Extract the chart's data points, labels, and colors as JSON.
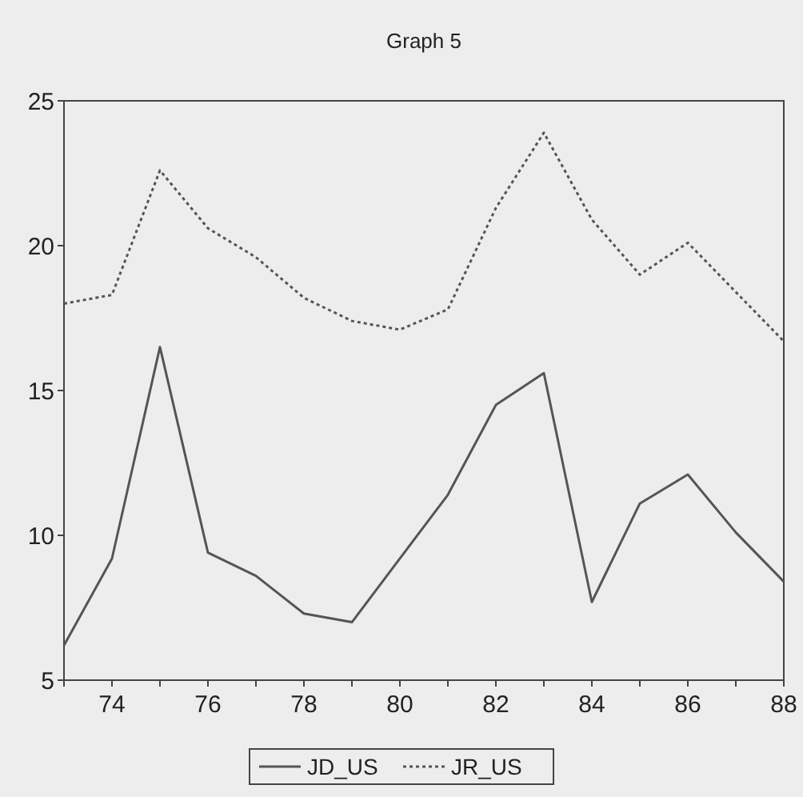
{
  "chart_data": {
    "type": "line",
    "title": "Graph 5",
    "x": [
      73,
      74,
      75,
      76,
      77,
      78,
      79,
      80,
      81,
      82,
      83,
      84,
      85,
      86,
      87,
      88
    ],
    "series": [
      {
        "name": "JD_US",
        "color": "#555555",
        "line_style": "solid",
        "values": [
          6.2,
          9.2,
          16.5,
          9.4,
          8.6,
          7.3,
          7.0,
          9.2,
          11.4,
          14.5,
          15.6,
          7.7,
          11.1,
          12.1,
          10.1,
          8.4
        ]
      },
      {
        "name": "JR_US",
        "color": "#555555",
        "line_style": "dotted",
        "values": [
          18.0,
          18.3,
          22.6,
          20.6,
          19.6,
          18.2,
          17.4,
          17.1,
          17.8,
          21.3,
          23.9,
          20.9,
          19.0,
          20.1,
          18.4,
          16.7
        ]
      }
    ],
    "xlim": [
      73,
      88
    ],
    "ylim": [
      5,
      25
    ],
    "xticks": [
      {
        "value": 73,
        "label": null
      },
      74,
      {
        "value": 75,
        "label": null
      },
      76,
      {
        "value": 77,
        "label": null
      },
      78,
      {
        "value": 79,
        "label": null
      },
      80,
      {
        "value": 81,
        "label": null
      },
      82,
      {
        "value": 83,
        "label": null
      },
      84,
      {
        "value": 85,
        "label": null
      },
      86,
      {
        "value": 87,
        "label": null
      },
      88
    ],
    "yticks": [
      5,
      10,
      15,
      20,
      25
    ],
    "grid": false,
    "legend": "bottom",
    "marker": "none"
  }
}
